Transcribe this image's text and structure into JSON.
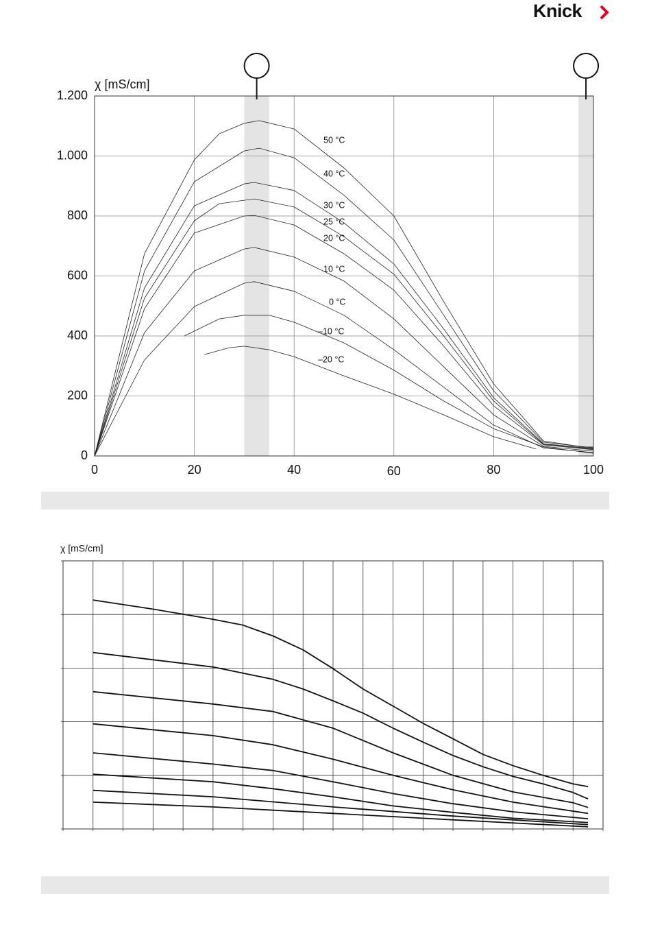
{
  "header": {
    "logo": "Knick"
  },
  "chart_data": [
    {
      "type": "line",
      "y_label": "χ  [mS/cm]",
      "xlim": [
        0,
        100
      ],
      "xticks": [
        0,
        20,
        40,
        60,
        80,
        100
      ],
      "ylim": [
        0,
        1200
      ],
      "yticks": [
        0,
        200,
        400,
        600,
        800,
        {
          "value": 1000,
          "label": "1.000"
        },
        {
          "value": 1200,
          "label": "1.200"
        }
      ],
      "grid": true,
      "shaded_ranges": [
        [
          30,
          35
        ],
        [
          97,
          100
        ]
      ],
      "series": [
        {
          "name": "50 °C",
          "color": "#222",
          "x": [
            0,
            10,
            20,
            25,
            30,
            33,
            40,
            50,
            60,
            70,
            80,
            90,
            98,
            100
          ],
          "values": [
            0,
            674,
            987,
            1074,
            1109,
            1118,
            1090,
            960,
            800,
            514,
            240,
            50,
            30,
            30
          ]
        },
        {
          "name": "40 °C",
          "color": "#222",
          "x": [
            0,
            10,
            20,
            30,
            33,
            40,
            50,
            60,
            70,
            80,
            90,
            100
          ],
          "values": [
            0,
            617,
            914,
            1017,
            1026,
            994,
            869,
            720,
            469,
            217,
            46,
            27
          ]
        },
        {
          "name": "30 °C",
          "color": "#222",
          "x": [
            0,
            10,
            20,
            30,
            32,
            40,
            50,
            60,
            70,
            80,
            90,
            100
          ],
          "values": [
            0,
            560,
            834,
            907,
            912,
            885,
            777,
            640,
            423,
            194,
            41,
            25
          ]
        },
        {
          "name": "25 °C",
          "color": "#222",
          "x": [
            0,
            10,
            20,
            25,
            32,
            40,
            50,
            60,
            70,
            80,
            90,
            100
          ],
          "values": [
            0,
            526,
            784,
            841,
            857,
            830,
            731,
            606,
            400,
            183,
            39,
            23
          ]
        },
        {
          "name": "20 °C",
          "color": "#222",
          "x": [
            0,
            10,
            20,
            30,
            32,
            40,
            50,
            60,
            70,
            80,
            90,
            100
          ],
          "values": [
            0,
            491,
            743,
            800,
            802,
            770,
            674,
            553,
            366,
            167,
            37,
            21
          ]
        },
        {
          "name": "10 °C",
          "color": "#222",
          "x": [
            0,
            10,
            20,
            30,
            32,
            40,
            50,
            60,
            70,
            80,
            90,
            100
          ],
          "values": [
            0,
            411,
            617,
            690,
            695,
            663,
            583,
            457,
            297,
            137,
            32,
            16
          ]
        },
        {
          "name": "0 °C",
          "color": "#222",
          "x": [
            0,
            10,
            20,
            30,
            32,
            40,
            50,
            60,
            70,
            80,
            90,
            100
          ],
          "values": [
            0,
            320,
            498,
            576,
            581,
            549,
            469,
            354,
            229,
            103,
            27,
            11
          ]
        },
        {
          "name": "–10 °C",
          "color": "#222",
          "x": [
            18,
            25,
            30,
            35,
            40,
            50,
            60,
            70,
            80,
            90,
            100
          ],
          "values": [
            400,
            457,
            469,
            469,
            446,
            377,
            286,
            183,
            91,
            30,
            9
          ]
        },
        {
          "name": "–20 °C",
          "color": "#222",
          "x": [
            22,
            27,
            30,
            35,
            40,
            50,
            60,
            70,
            80,
            88.5
          ],
          "values": [
            338,
            361,
            366,
            354,
            331,
            267,
            206,
            137,
            64,
            23
          ]
        }
      ]
    },
    {
      "type": "line",
      "y_label": "χ  [mS/cm]",
      "xlim": [
        0,
        18
      ],
      "ylim": [
        0,
        5
      ],
      "grid": true,
      "series": [
        {
          "color": "#111",
          "x": [
            1,
            3,
            5,
            6,
            7,
            8,
            9,
            10,
            11,
            12,
            13,
            14,
            15,
            16,
            17,
            17.5
          ],
          "values": [
            4.27,
            4.1,
            3.91,
            3.8,
            3.6,
            3.34,
            2.99,
            2.61,
            2.29,
            1.97,
            1.68,
            1.39,
            1.18,
            1.0,
            0.84,
            0.79
          ]
        },
        {
          "color": "#111",
          "x": [
            1,
            5,
            7,
            8,
            9,
            10,
            11,
            12,
            13,
            14,
            15,
            16,
            17,
            17.5
          ],
          "values": [
            3.29,
            3.02,
            2.79,
            2.61,
            2.39,
            2.16,
            1.88,
            1.62,
            1.37,
            1.16,
            0.98,
            0.84,
            0.68,
            0.56
          ]
        },
        {
          "color": "#111",
          "x": [
            1,
            5,
            7,
            9,
            11,
            13,
            15,
            17,
            17.5
          ],
          "values": [
            2.56,
            2.33,
            2.19,
            1.88,
            1.42,
            1.0,
            0.69,
            0.49,
            0.4
          ]
        },
        {
          "color": "#111",
          "x": [
            1,
            5,
            7,
            9,
            11,
            13,
            15,
            17.5
          ],
          "values": [
            1.96,
            1.74,
            1.57,
            1.3,
            1.0,
            0.73,
            0.5,
            0.29
          ]
        },
        {
          "color": "#111",
          "x": [
            1,
            5,
            7,
            9,
            11,
            13,
            15,
            17.5
          ],
          "values": [
            1.42,
            1.21,
            1.09,
            0.88,
            0.66,
            0.47,
            0.32,
            0.19
          ]
        },
        {
          "color": "#111",
          "x": [
            1,
            5,
            7,
            9,
            11,
            13,
            15,
            17.5
          ],
          "values": [
            1.02,
            0.88,
            0.75,
            0.6,
            0.43,
            0.31,
            0.2,
            0.12
          ]
        },
        {
          "color": "#111",
          "x": [
            1,
            5,
            9,
            13,
            17.5
          ],
          "values": [
            0.72,
            0.6,
            0.41,
            0.24,
            0.08
          ]
        },
        {
          "color": "#111",
          "x": [
            1,
            5,
            9,
            13,
            17.5
          ],
          "values": [
            0.5,
            0.41,
            0.29,
            0.17,
            0.04
          ]
        }
      ]
    }
  ]
}
